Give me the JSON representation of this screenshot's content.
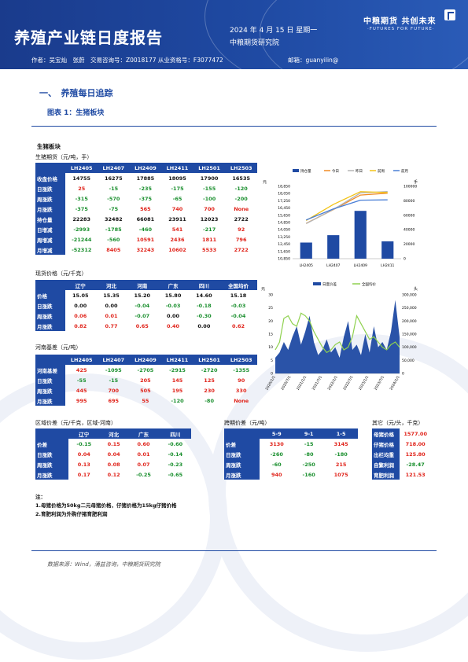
{
  "header": {
    "title": "养殖产业链日度报告",
    "date": "2024 年 4 月 15 日 星期一",
    "institute": "中粮期货研究院",
    "logo_cn": "中粮期货  共创未来",
    "logo_en": "·FUTURES FOR FUTURE·",
    "authors": "作者：吴宝灿　张蔚　交易咨询号：Z0018177 从业资格号：F3077472",
    "email": "邮箱：guanyilin@"
  },
  "section": {
    "heading": "一、　养殖每日追踪",
    "figure": "图表 1：生猪板块"
  },
  "board_title": "生猪板块",
  "futures": {
    "title": "生猪期货（元/吨，手）",
    "columns": [
      "",
      "LH2405",
      "LH2407",
      "LH2409",
      "LH2411",
      "LH2501",
      "LH2503"
    ],
    "rows": [
      {
        "label": "收盘价格",
        "values": [
          "14755",
          "16275",
          "17885",
          "18095",
          "17900",
          "16535"
        ],
        "colors": [
          "k",
          "k",
          "k",
          "k",
          "k",
          "k"
        ]
      },
      {
        "label": "日涨跌",
        "values": [
          "25",
          "-15",
          "-235",
          "-175",
          "-155",
          "-120"
        ],
        "colors": [
          "r",
          "g",
          "g",
          "g",
          "g",
          "g"
        ]
      },
      {
        "label": "周涨跌",
        "values": [
          "-315",
          "-570",
          "-375",
          "-65",
          "-100",
          "-200"
        ],
        "colors": [
          "g",
          "g",
          "g",
          "g",
          "g",
          "g"
        ]
      },
      {
        "label": "月涨跌",
        "values": [
          "-375",
          "-75",
          "565",
          "740",
          "700",
          "None"
        ],
        "colors": [
          "g",
          "g",
          "r",
          "r",
          "r",
          "r"
        ]
      },
      {
        "label": "持仓量",
        "values": [
          "22283",
          "32482",
          "66081",
          "23911",
          "12023",
          "2722"
        ],
        "colors": [
          "k",
          "k",
          "k",
          "k",
          "k",
          "k"
        ]
      },
      {
        "label": "日增减",
        "values": [
          "-2993",
          "-1785",
          "-460",
          "541",
          "-217",
          "92"
        ],
        "colors": [
          "g",
          "g",
          "g",
          "r",
          "g",
          "r"
        ]
      },
      {
        "label": "周增减",
        "values": [
          "-21244",
          "-560",
          "10591",
          "2436",
          "1811",
          "796"
        ],
        "colors": [
          "g",
          "g",
          "r",
          "r",
          "r",
          "r"
        ]
      },
      {
        "label": "月增减",
        "values": [
          "-52312",
          "8405",
          "32243",
          "10602",
          "5533",
          "2722"
        ],
        "colors": [
          "g",
          "r",
          "r",
          "r",
          "r",
          "r"
        ]
      }
    ]
  },
  "spot": {
    "title": "现货价格（元/千克）",
    "columns": [
      "",
      "辽宁",
      "河北",
      "河南",
      "广东",
      "四川",
      "全国均价"
    ],
    "rows": [
      {
        "label": "价格",
        "values": [
          "15.05",
          "15.35",
          "15.20",
          "15.80",
          "14.60",
          "15.18"
        ],
        "colors": [
          "k",
          "k",
          "k",
          "k",
          "k",
          "k"
        ]
      },
      {
        "label": "日涨跌",
        "values": [
          "0.00",
          "0.00",
          "-0.04",
          "-0.03",
          "-0.18",
          "-0.03"
        ],
        "colors": [
          "k",
          "k",
          "g",
          "g",
          "g",
          "g"
        ]
      },
      {
        "label": "周涨跌",
        "values": [
          "0.06",
          "0.01",
          "-0.07",
          "0.00",
          "-0.30",
          "-0.04"
        ],
        "colors": [
          "r",
          "r",
          "g",
          "k",
          "g",
          "g"
        ]
      },
      {
        "label": "月涨跌",
        "values": [
          "0.82",
          "0.77",
          "0.65",
          "0.40",
          "0.00",
          "0.62"
        ],
        "colors": [
          "r",
          "r",
          "r",
          "r",
          "k",
          "r"
        ]
      }
    ]
  },
  "basis": {
    "title": "河南基差（元/吨）",
    "columns": [
      "",
      "LH2405",
      "LH2407",
      "LH2409",
      "LH2411",
      "LH2501",
      "LH2503"
    ],
    "rows": [
      {
        "label": "河南基差",
        "values": [
          "425",
          "-1095",
          "-2705",
          "-2915",
          "-2720",
          "-1355"
        ],
        "colors": [
          "r",
          "g",
          "g",
          "g",
          "g",
          "g"
        ]
      },
      {
        "label": "日涨跌",
        "values": [
          "-55",
          "-15",
          "205",
          "145",
          "125",
          "90"
        ],
        "colors": [
          "g",
          "g",
          "r",
          "r",
          "r",
          "r"
        ]
      },
      {
        "label": "周涨跌",
        "values": [
          "445",
          "700",
          "505",
          "195",
          "230",
          "330"
        ],
        "colors": [
          "r",
          "r",
          "r",
          "r",
          "r",
          "r"
        ]
      },
      {
        "label": "月涨跌",
        "values": [
          "995",
          "695",
          "55",
          "-120",
          "-80",
          "None"
        ],
        "colors": [
          "r",
          "r",
          "r",
          "g",
          "g",
          "r"
        ]
      }
    ]
  },
  "region": {
    "title": "区域价差（元/千克，区域-河南）",
    "columns": [
      "",
      "辽宁",
      "河北",
      "广东",
      "四川"
    ],
    "rows": [
      {
        "label": "价差",
        "values": [
          "-0.15",
          "0.15",
          "0.60",
          "-0.60"
        ],
        "colors": [
          "g",
          "r",
          "r",
          "g"
        ]
      },
      {
        "label": "日涨跌",
        "values": [
          "0.04",
          "0.04",
          "0.01",
          "-0.14"
        ],
        "colors": [
          "r",
          "r",
          "r",
          "g"
        ]
      },
      {
        "label": "周涨跌",
        "values": [
          "0.13",
          "0.08",
          "0.07",
          "-0.23"
        ],
        "colors": [
          "r",
          "r",
          "r",
          "g"
        ]
      },
      {
        "label": "月涨跌",
        "values": [
          "0.17",
          "0.12",
          "-0.25",
          "-0.65"
        ],
        "colors": [
          "r",
          "r",
          "g",
          "g"
        ]
      }
    ]
  },
  "spread": {
    "title": "跨期价差（元/吨）",
    "columns": [
      "",
      "5-9",
      "9-1",
      "1-5"
    ],
    "rows": [
      {
        "label": "价差",
        "values": [
          "3130",
          "-15",
          "3145"
        ],
        "colors": [
          "r",
          "g",
          "r"
        ]
      },
      {
        "label": "日涨跌",
        "values": [
          "-260",
          "-80",
          "-180"
        ],
        "colors": [
          "g",
          "g",
          "g"
        ]
      },
      {
        "label": "周涨跌",
        "values": [
          "-60",
          "-250",
          "215"
        ],
        "colors": [
          "g",
          "g",
          "r"
        ]
      },
      {
        "label": "月涨跌",
        "values": [
          "940",
          "-160",
          "1075"
        ],
        "colors": [
          "r",
          "g",
          "r"
        ]
      }
    ]
  },
  "other": {
    "title": "其它（元/头，千克）",
    "rows": [
      {
        "label": "母猪价格",
        "value": "1577.00",
        "color": "r"
      },
      {
        "label": "仔猪价格",
        "value": "718.00",
        "color": "r"
      },
      {
        "label": "出栏均重",
        "value": "125.80",
        "color": "r"
      },
      {
        "label": "自繁利润",
        "value": "-28.47",
        "color": "g"
      },
      {
        "label": "育肥利润",
        "value": "121.53",
        "color": "r"
      }
    ]
  },
  "notes": {
    "head": "注：",
    "items": [
      "1.母猪价格为50kg二元母猪价格，仔猪价格为15kg仔猪价格",
      "2.育肥利润为外购仔猪育肥利润"
    ]
  },
  "source": "数据来源：Wind，涌益咨询，中粮期货研究院",
  "colors": {
    "brand": "#1f4aa3",
    "up": "#e0241b",
    "down": "#1a8f2e"
  },
  "chart_data": [
    {
      "type": "bar",
      "title": "",
      "categories": [
        "LH2405",
        "LH2407",
        "LH2409",
        "LH2411"
      ],
      "legend": [
        "持仓量",
        "今日",
        "昨日",
        "前周",
        "前月"
      ],
      "left_axis_label": "元",
      "right_axis_label": "手",
      "left_ticks": [
        "18,850",
        "18,050",
        "17,250",
        "16,450",
        "15,650",
        "14,850",
        "14,050",
        "13,250",
        "12,450",
        "11,650",
        "10,850"
      ],
      "right_ticks": [
        "100000",
        "80000",
        "60000",
        "40000",
        "20000",
        "0"
      ],
      "ylim_left": [
        10850,
        18850
      ],
      "ylim_right": [
        0,
        100000
      ],
      "series": [
        {
          "name": "持仓量",
          "axis": "right",
          "values": [
            22283,
            32482,
            66081,
            23911
          ],
          "color": "#1f4aa3"
        },
        {
          "name": "今日",
          "axis": "left",
          "values": [
            14755,
            16275,
            17885,
            18095
          ],
          "color": "#f08a24"
        },
        {
          "name": "昨日",
          "axis": "left",
          "values": [
            14730,
            16290,
            18120,
            18270
          ],
          "color": "#b4b4b4"
        },
        {
          "name": "前周",
          "axis": "left",
          "values": [
            15070,
            16845,
            18260,
            18160
          ],
          "color": "#f2c318"
        },
        {
          "name": "前月",
          "axis": "left",
          "values": [
            15130,
            16350,
            17320,
            17355
          ],
          "color": "#4a7fd6"
        }
      ]
    },
    {
      "type": "line",
      "title": "",
      "legend": [
        "日度价差",
        "全国均价"
      ],
      "left_axis_label": "元",
      "right_axis_label": "头",
      "left_ticks": [
        "30",
        "25",
        "20",
        "15",
        "10",
        "5",
        "0"
      ],
      "right_ticks": [
        "300,000",
        "250,000",
        "200,000",
        "150,000",
        "100,000",
        "50,000",
        "0"
      ],
      "x_ticks": [
        "2020/1/1",
        "2020/7/1",
        "2021/1/1",
        "2021/7/1",
        "2022/1/1",
        "2022/7/1",
        "2023/1/1",
        "2023/7/1",
        "2024/1/1"
      ],
      "ylim_left": [
        0,
        30
      ],
      "ylim_right": [
        0,
        300000
      ],
      "series": [
        {
          "name": "日度价差",
          "color": "#1f4aa3",
          "values": [
            6,
            8,
            12,
            9,
            14,
            18,
            11,
            16,
            22,
            12,
            7,
            9,
            13,
            8,
            10,
            6,
            14,
            20,
            9,
            11,
            7,
            15,
            8,
            18,
            10,
            12,
            9,
            16,
            28,
            14
          ]
        },
        {
          "name": "全国均价",
          "color": "#8fd14f",
          "values": [
            9,
            12,
            21,
            22,
            19,
            18,
            23,
            22,
            20,
            16,
            13,
            10,
            8,
            9,
            11,
            12,
            9,
            10,
            14,
            22,
            19,
            16,
            13,
            14,
            12,
            10,
            9,
            11,
            12,
            10
          ]
        }
      ]
    }
  ]
}
